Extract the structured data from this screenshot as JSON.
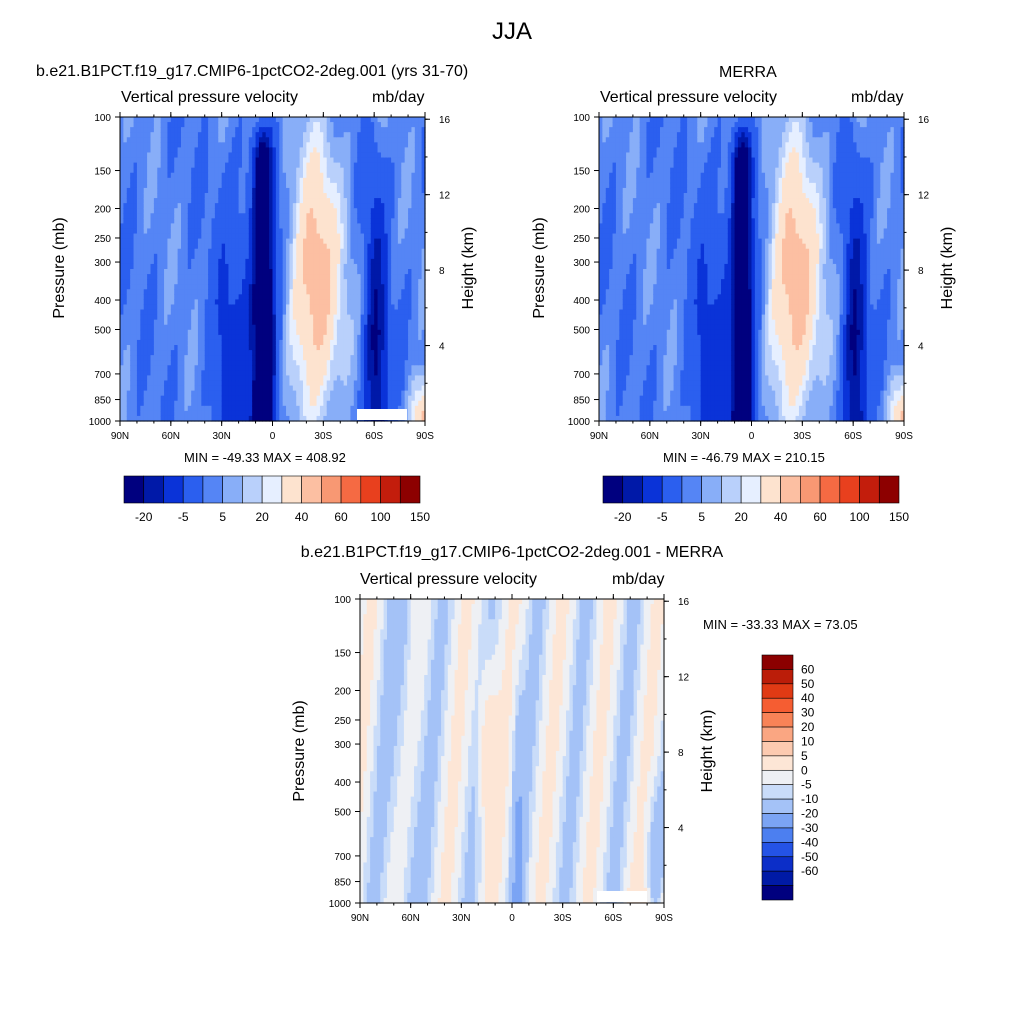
{
  "figure": {
    "title": "JJA",
    "field_label": "Vertical pressure velocity",
    "units": "mb/day",
    "y_axis_label": "Pressure (mb)",
    "y2_axis_label": "Height (km)",
    "x_ticks": [
      "90N",
      "60N",
      "30N",
      "0",
      "30S",
      "60S",
      "90S"
    ],
    "pressure_ticks": [
      "100",
      "150",
      "200",
      "250",
      "300",
      "400",
      "500",
      "700",
      "850",
      "1000"
    ],
    "height_ticks": [
      "16",
      "12",
      "8",
      "4"
    ]
  },
  "panels": [
    {
      "id": "model",
      "title": "b.e21.B1PCT.f19_g17.CMIP6-1pctCO2-2deg.001 (yrs 31-70)",
      "minmax": "MIN = -49.33  MAX = 408.92"
    },
    {
      "id": "obs",
      "title": "MERRA",
      "minmax": "MIN = -46.79  MAX = 210.15"
    },
    {
      "id": "diff",
      "title": "b.e21.B1PCT.f19_g17.CMIP6-1pctCO2-2deg.001 - MERRA",
      "minmax": "MIN = -33.33  MAX =  73.05"
    }
  ],
  "colorbars": {
    "top_labels": [
      "-20",
      "-5",
      "5",
      "20",
      "40",
      "60",
      "100",
      "150"
    ],
    "top_colors": [
      "#00007f",
      "#0019a8",
      "#0a33d8",
      "#2b5fef",
      "#5585f5",
      "#88aef8",
      "#b9d0fb",
      "#e6efff",
      "#fde3cf",
      "#fcbfa2",
      "#f89873",
      "#f56a43",
      "#e8401e",
      "#c31d0c",
      "#8d0000"
    ],
    "diff_labels": [
      "60",
      "50",
      "40",
      "30",
      "20",
      "10",
      "5",
      "0",
      "-5",
      "-10",
      "-20",
      "-30",
      "-40",
      "-50",
      "-60"
    ],
    "diff_colors": [
      "#8b0000",
      "#bb1d09",
      "#e03a14",
      "#f55d32",
      "#f88357",
      "#faa682",
      "#fccab0",
      "#fde6d6",
      "#eef0f4",
      "#c9dcf9",
      "#a4c2f7",
      "#7ba4f4",
      "#4c7ff0",
      "#2453e6",
      "#0c2ec8",
      "#001aa6",
      "#00007f"
    ]
  },
  "chart_data": [
    {
      "type": "heatmap",
      "title": "b.e21.B1PCT.f19_g17.CMIP6-1pctCO2-2deg.001 (yrs 31-70)",
      "subtitle": "Vertical pressure velocity",
      "units": "mb/day",
      "x": [
        "90N",
        "60N",
        "30N",
        "0",
        "30S",
        "60S",
        "90S"
      ],
      "y_pressure": [
        100,
        150,
        200,
        250,
        300,
        400,
        500,
        700,
        850,
        1000
      ],
      "y_height_km": [
        16,
        12,
        8,
        4
      ],
      "xlabel": "",
      "ylabel": "Pressure (mb)",
      "y2label": "Height (km)",
      "min": -49.33,
      "max": 408.92,
      "levels": [
        -20,
        -5,
        5,
        20,
        40,
        60,
        100,
        150
      ]
    },
    {
      "type": "heatmap",
      "title": "MERRA",
      "subtitle": "Vertical pressure velocity",
      "units": "mb/day",
      "x": [
        "90N",
        "60N",
        "30N",
        "0",
        "30S",
        "60S",
        "90S"
      ],
      "y_pressure": [
        100,
        150,
        200,
        250,
        300,
        400,
        500,
        700,
        850,
        1000
      ],
      "y_height_km": [
        16,
        12,
        8,
        4
      ],
      "xlabel": "",
      "ylabel": "Pressure (mb)",
      "y2label": "Height (km)",
      "min": -46.79,
      "max": 210.15,
      "levels": [
        -20,
        -5,
        5,
        20,
        40,
        60,
        100,
        150
      ]
    },
    {
      "type": "heatmap",
      "title": "b.e21.B1PCT.f19_g17.CMIP6-1pctCO2-2deg.001 - MERRA",
      "subtitle": "Vertical pressure velocity",
      "units": "mb/day",
      "x": [
        "90N",
        "60N",
        "30N",
        "0",
        "30S",
        "60S",
        "90S"
      ],
      "y_pressure": [
        100,
        150,
        200,
        250,
        300,
        400,
        500,
        700,
        850,
        1000
      ],
      "y_height_km": [
        16,
        12,
        8,
        4
      ],
      "xlabel": "",
      "ylabel": "Pressure (mb)",
      "y2label": "Height (km)",
      "min": -33.33,
      "max": 73.05,
      "levels": [
        60,
        50,
        40,
        30,
        20,
        10,
        5,
        0,
        -5,
        -10,
        -20,
        -30,
        -40,
        -50,
        -60
      ]
    }
  ]
}
